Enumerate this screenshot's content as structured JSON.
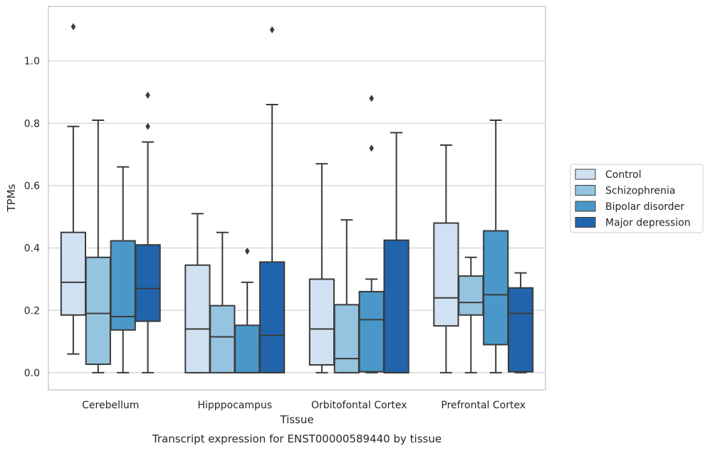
{
  "chart_data": {
    "type": "boxplot",
    "caption": "Transcript expression for ENST00000589440 by tissue",
    "xlabel": "Tissue",
    "ylabel": "TPMs",
    "ylim": [
      -0.055,
      1.175
    ],
    "yticks": [
      "0.0",
      "0.2",
      "0.4",
      "0.6",
      "0.8",
      "1.0"
    ],
    "grid": true,
    "legend_position": "right",
    "categories": [
      "Cerebellum",
      "Hipppocampus",
      "Orbitofontal Cortex",
      "Prefrontal Cortex"
    ],
    "series": [
      {
        "name": "Control",
        "color": "#d0e1f2",
        "boxes": [
          {
            "whislo": 0.06,
            "q1": 0.185,
            "med": 0.29,
            "q3": 0.45,
            "whishi": 0.79,
            "fliers": [
              1.11
            ]
          },
          {
            "whislo": 0.0,
            "q1": 0.0,
            "med": 0.14,
            "q3": 0.345,
            "whishi": 0.51,
            "fliers": []
          },
          {
            "whislo": 0.0,
            "q1": 0.025,
            "med": 0.14,
            "q3": 0.3,
            "whishi": 0.67,
            "fliers": []
          },
          {
            "whislo": 0.0,
            "q1": 0.15,
            "med": 0.24,
            "q3": 0.48,
            "whishi": 0.73,
            "fliers": []
          }
        ]
      },
      {
        "name": "Schizophrenia",
        "color": "#94c4df",
        "boxes": [
          {
            "whislo": 0.0,
            "q1": 0.027,
            "med": 0.19,
            "q3": 0.37,
            "whishi": 0.81,
            "fliers": []
          },
          {
            "whislo": 0.0,
            "q1": 0.0,
            "med": 0.115,
            "q3": 0.215,
            "whishi": 0.45,
            "fliers": []
          },
          {
            "whislo": 0.0,
            "q1": 0.0,
            "med": 0.045,
            "q3": 0.218,
            "whishi": 0.49,
            "fliers": []
          },
          {
            "whislo": 0.0,
            "q1": 0.185,
            "med": 0.225,
            "q3": 0.31,
            "whishi": 0.37,
            "fliers": []
          }
        ]
      },
      {
        "name": "Bipolar disorder",
        "color": "#4a98c9",
        "boxes": [
          {
            "whislo": 0.0,
            "q1": 0.137,
            "med": 0.18,
            "q3": 0.423,
            "whishi": 0.66,
            "fliers": []
          },
          {
            "whislo": 0.0,
            "q1": 0.0,
            "med": 0.0,
            "q3": 0.152,
            "whishi": 0.29,
            "fliers": [
              0.39
            ]
          },
          {
            "whislo": 0.0,
            "q1": 0.003,
            "med": 0.17,
            "q3": 0.26,
            "whishi": 0.3,
            "fliers": [
              0.72,
              0.88
            ]
          },
          {
            "whislo": 0.0,
            "q1": 0.09,
            "med": 0.25,
            "q3": 0.455,
            "whishi": 0.81,
            "fliers": []
          }
        ]
      },
      {
        "name": "Major depression",
        "color": "#2164ab",
        "boxes": [
          {
            "whislo": 0.0,
            "q1": 0.165,
            "med": 0.27,
            "q3": 0.41,
            "whishi": 0.74,
            "fliers": [
              0.79,
              0.89
            ]
          },
          {
            "whislo": 0.0,
            "q1": 0.0,
            "med": 0.12,
            "q3": 0.355,
            "whishi": 0.86,
            "fliers": [
              1.1
            ]
          },
          {
            "whislo": 0.0,
            "q1": 0.0,
            "med": 0.0,
            "q3": 0.425,
            "whishi": 0.77,
            "fliers": []
          },
          {
            "whislo": 0.0,
            "q1": 0.003,
            "med": 0.19,
            "q3": 0.272,
            "whishi": 0.32,
            "fliers": []
          }
        ]
      }
    ]
  }
}
